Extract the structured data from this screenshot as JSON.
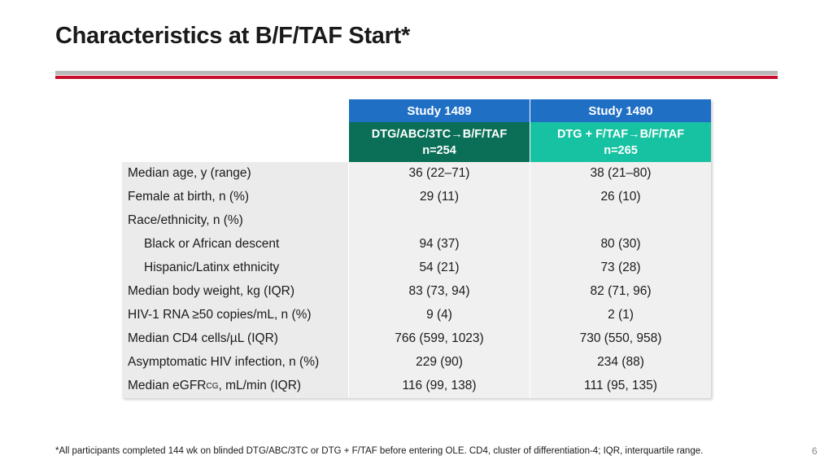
{
  "title": "Characteristics at B/F/TAF Start*",
  "colors": {
    "accent_red": "#c8102e",
    "header_blue": "#1f6fc5",
    "study1489_green": "#0b6f58",
    "study1490_teal": "#16c2a1"
  },
  "table": {
    "col1": {
      "study": "Study 1489",
      "regimen": "DTG/ABC/3TC→B/F/TAF",
      "n": "n=254"
    },
    "col2": {
      "study": "Study 1490",
      "regimen": "DTG + F/TAF→B/F/TAF",
      "n": "n=265"
    },
    "rows": [
      {
        "label": "Median age, y (range)",
        "v1": "36 (22–71)",
        "v2": "38 (21–80)"
      },
      {
        "label": "Female at birth, n (%)",
        "v1": "29 (11)",
        "v2": "26 (10)"
      },
      {
        "label": "Race/ethnicity, n (%)",
        "v1": "",
        "v2": ""
      },
      {
        "label": "Black or African descent",
        "v1": "94 (37)",
        "v2": "80 (30)"
      },
      {
        "label": "Hispanic/Latinx ethnicity",
        "v1": "54 (21)",
        "v2": "73 (28)"
      },
      {
        "label": "Median body weight, kg (IQR)",
        "v1": "83 (73, 94)",
        "v2": "82 (71, 96)"
      },
      {
        "label": "HIV-1 RNA ≥50 copies/mL, n (%)",
        "v1": "9 (4)",
        "v2": "2 (1)"
      },
      {
        "label": "Median CD4 cells/µL (IQR)",
        "v1": "766 (599, 1023)",
        "v2": "730 (550, 958)"
      },
      {
        "label": "Asymptomatic HIV infection, n (%)",
        "v1": "229 (90)",
        "v2": "234 (88)"
      },
      {
        "label_main": "Median eGFR",
        "label_sub": "CG",
        "label_tail": ", mL/min (IQR)",
        "v1": "116 (99, 138)",
        "v2": "111 (95, 135)"
      }
    ]
  },
  "footnote": "*All participants completed 144 wk on blinded DTG/ABC/3TC or DTG + F/TAF before entering OLE. CD4, cluster of differentiation-4; IQR, interquartile range.",
  "page_number": "6"
}
